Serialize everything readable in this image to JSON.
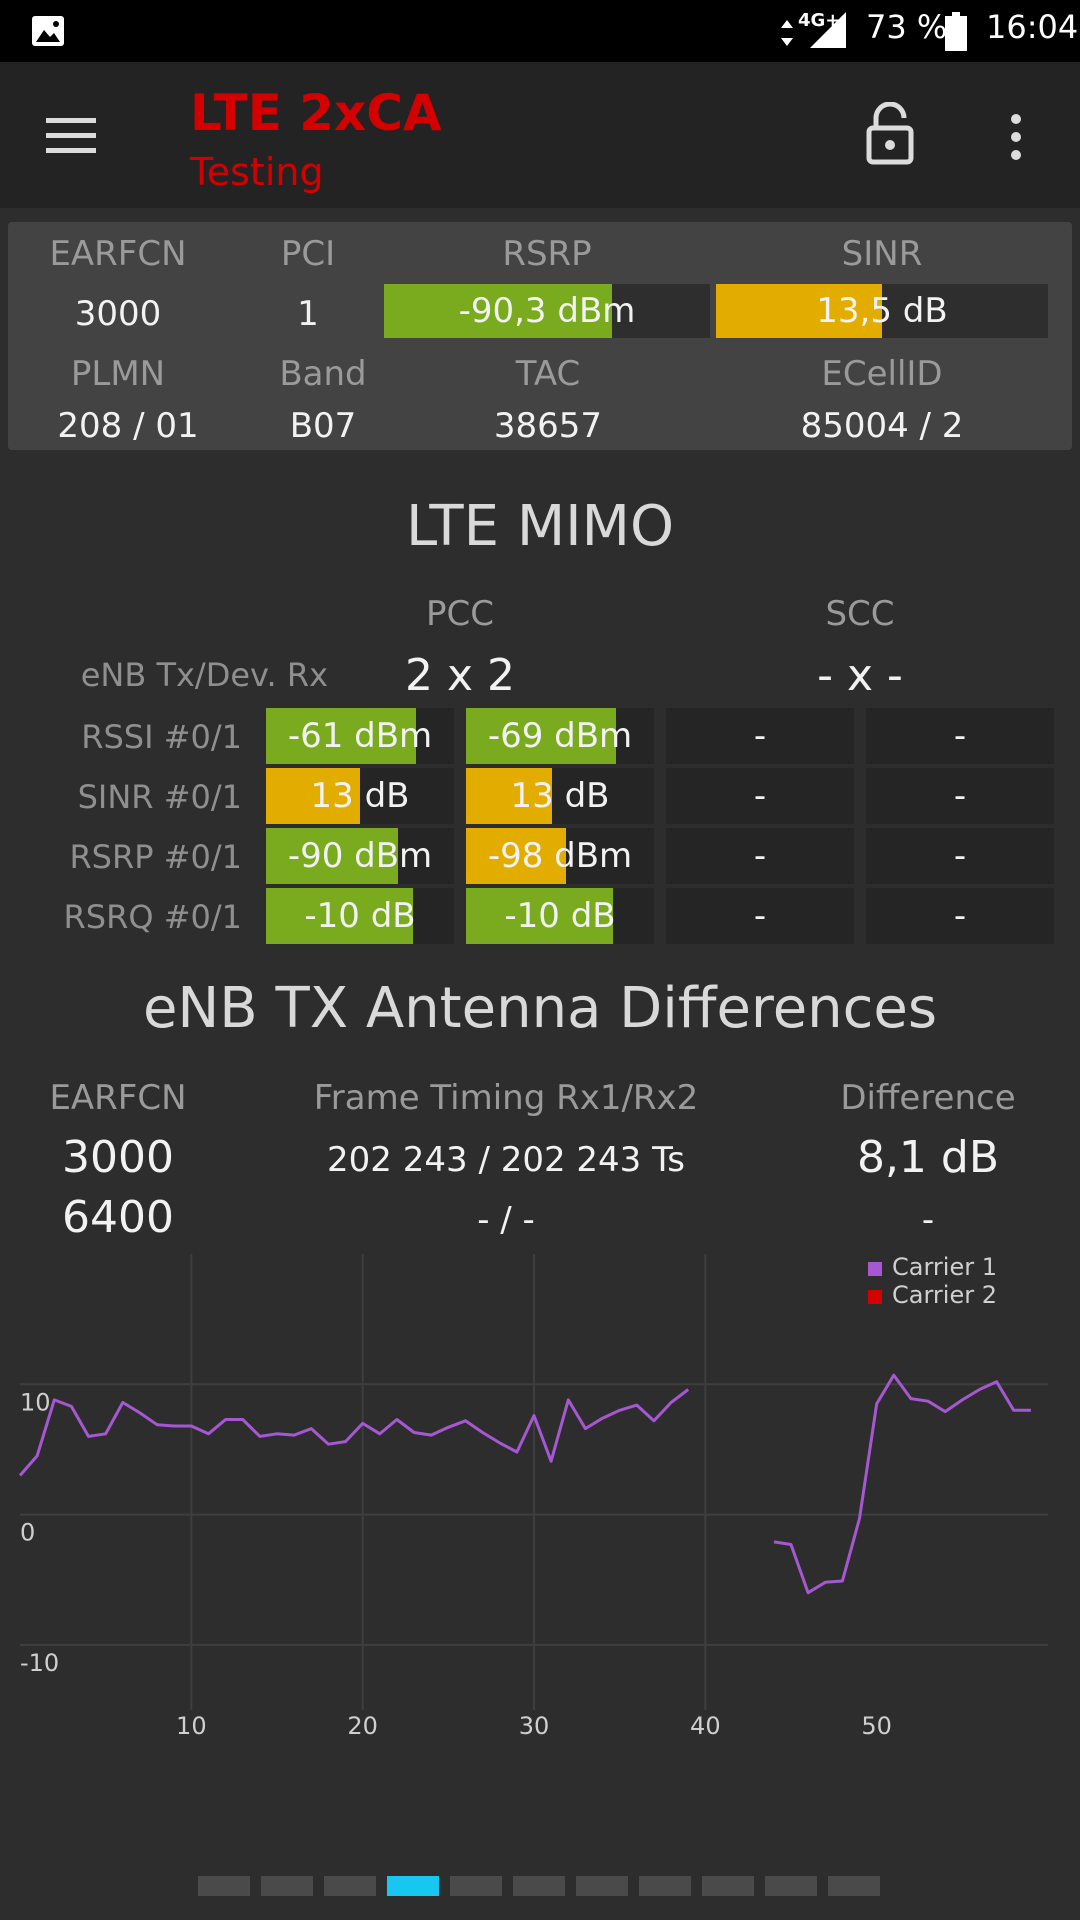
{
  "status_bar": {
    "network": "4G+",
    "battery": "73 %",
    "time": "16:04"
  },
  "app_bar": {
    "title": "LTE 2xCA",
    "subtitle": "Testing"
  },
  "cell_info": {
    "labels": {
      "earfcn": "EARFCN",
      "pci": "PCI",
      "rsrp": "RSRP",
      "sinr": "SINR",
      "plmn": "PLMN",
      "band": "Band",
      "tac": "TAC",
      "ecellid": "ECellID"
    },
    "earfcn": "3000",
    "pci": "1",
    "rsrp": {
      "text": "-90,3 dBm",
      "fill": 0.7,
      "color": "#7aab1e"
    },
    "sinr": {
      "text": "13,5 dB",
      "fill": 0.5,
      "color": "#e3ad00"
    },
    "plmn": "208 / 01",
    "band": "B07",
    "tac": "38657",
    "ecellid": "85004 / 2"
  },
  "mimo": {
    "title": "LTE MIMO",
    "pcc_label": "PCC",
    "scc_label": "SCC",
    "enb_label": "eNB Tx/Dev. Rx",
    "pcc_value": "2 x 2",
    "scc_value": "- x -",
    "rows": [
      {
        "label": "RSSI #0/1",
        "cells": [
          {
            "text": "-61 dBm",
            "fill": 0.8,
            "color": "#7aab1e"
          },
          {
            "text": "-69 dBm",
            "fill": 0.8,
            "color": "#7aab1e"
          },
          {
            "text": "-",
            "fill": 0,
            "color": "#7aab1e"
          },
          {
            "text": "-",
            "fill": 0,
            "color": "#7aab1e"
          }
        ]
      },
      {
        "label": "SINR #0/1",
        "cells": [
          {
            "text": "13 dB",
            "fill": 0.5,
            "color": "#e3ad00"
          },
          {
            "text": "13 dB",
            "fill": 0.46,
            "color": "#e3ad00"
          },
          {
            "text": "-",
            "fill": 0,
            "color": "#e3ad00"
          },
          {
            "text": "-",
            "fill": 0,
            "color": "#e3ad00"
          }
        ]
      },
      {
        "label": "RSRP #0/1",
        "cells": [
          {
            "text": "-90 dBm",
            "fill": 0.7,
            "color": "#7aab1e"
          },
          {
            "text": "-98 dBm",
            "fill": 0.53,
            "color": "#e3ad00"
          },
          {
            "text": "-",
            "fill": 0,
            "color": "#7aab1e"
          },
          {
            "text": "-",
            "fill": 0,
            "color": "#7aab1e"
          }
        ]
      },
      {
        "label": "RSRQ #0/1",
        "cells": [
          {
            "text": "-10 dB",
            "fill": 0.78,
            "color": "#7aab1e"
          },
          {
            "text": "-10 dB",
            "fill": 0.78,
            "color": "#7aab1e"
          },
          {
            "text": "-",
            "fill": 0,
            "color": "#7aab1e"
          },
          {
            "text": "-",
            "fill": 0,
            "color": "#7aab1e"
          }
        ]
      }
    ]
  },
  "antenna": {
    "title": "eNB TX Antenna Differences",
    "col_earfcn": "EARFCN",
    "col_timing": "Frame Timing Rx1/Rx2",
    "col_diff": "Difference",
    "rows": [
      {
        "earfcn": "3000",
        "timing": "202 243 / 202 243 Ts",
        "diff": "8,1 dB"
      },
      {
        "earfcn": "6400",
        "timing": "- / -",
        "diff": "-"
      }
    ]
  },
  "chart_data": {
    "type": "line",
    "xlim": [
      0,
      60
    ],
    "ylim": [
      -15,
      20
    ],
    "x_ticks": [
      10,
      20,
      30,
      40,
      50
    ],
    "y_ticks": [
      10,
      0,
      -10
    ],
    "grid": true,
    "legend_position": "top-right",
    "series": [
      {
        "name": "Carrier 1",
        "color": "#a658d2",
        "segments": [
          [
            [
              0,
              3
            ],
            [
              1,
              4.5
            ],
            [
              2,
              8.8
            ],
            [
              3,
              8.3
            ],
            [
              4,
              6
            ],
            [
              5,
              6.2
            ],
            [
              6,
              8.6
            ],
            [
              7,
              7.8
            ],
            [
              8,
              6.9
            ],
            [
              9,
              6.8
            ],
            [
              10,
              6.8
            ],
            [
              11,
              6.2
            ],
            [
              12,
              7.3
            ],
            [
              13,
              7.3
            ],
            [
              14,
              6
            ],
            [
              15,
              6.2
            ],
            [
              16,
              6.1
            ],
            [
              17,
              6.6
            ],
            [
              18,
              5.4
            ],
            [
              19,
              5.6
            ],
            [
              20,
              7
            ],
            [
              21,
              6.2
            ],
            [
              22,
              7.3
            ],
            [
              23,
              6.3
            ],
            [
              24,
              6.1
            ],
            [
              25,
              6.7
            ],
            [
              26,
              7.2
            ],
            [
              27,
              6.3
            ],
            [
              28,
              5.5
            ],
            [
              29,
              4.8
            ],
            [
              30,
              7.6
            ],
            [
              31,
              4.1
            ],
            [
              32,
              8.8
            ],
            [
              33,
              6.6
            ],
            [
              34,
              7.4
            ],
            [
              35,
              8
            ],
            [
              36,
              8.4
            ],
            [
              37,
              7.2
            ],
            [
              38,
              8.6
            ],
            [
              39,
              9.6
            ]
          ],
          [
            [
              44,
              -2.1
            ],
            [
              45,
              -2.3
            ],
            [
              46,
              -6
            ],
            [
              47,
              -5.2
            ],
            [
              48,
              -5.1
            ],
            [
              49,
              -0.3
            ],
            [
              50,
              8.5
            ],
            [
              51,
              10.7
            ],
            [
              52,
              8.9
            ],
            [
              53,
              8.7
            ],
            [
              54,
              7.9
            ],
            [
              55,
              8.8
            ],
            [
              56,
              9.6
            ],
            [
              57,
              10.2
            ],
            [
              58,
              8
            ],
            [
              59,
              8
            ]
          ]
        ]
      },
      {
        "name": "Carrier 2",
        "color": "#d40000",
        "segments": []
      }
    ]
  },
  "pager": {
    "count": 11,
    "active": 3,
    "active_color": "#17c7f0",
    "inactive_color": "#4a4a4a"
  }
}
